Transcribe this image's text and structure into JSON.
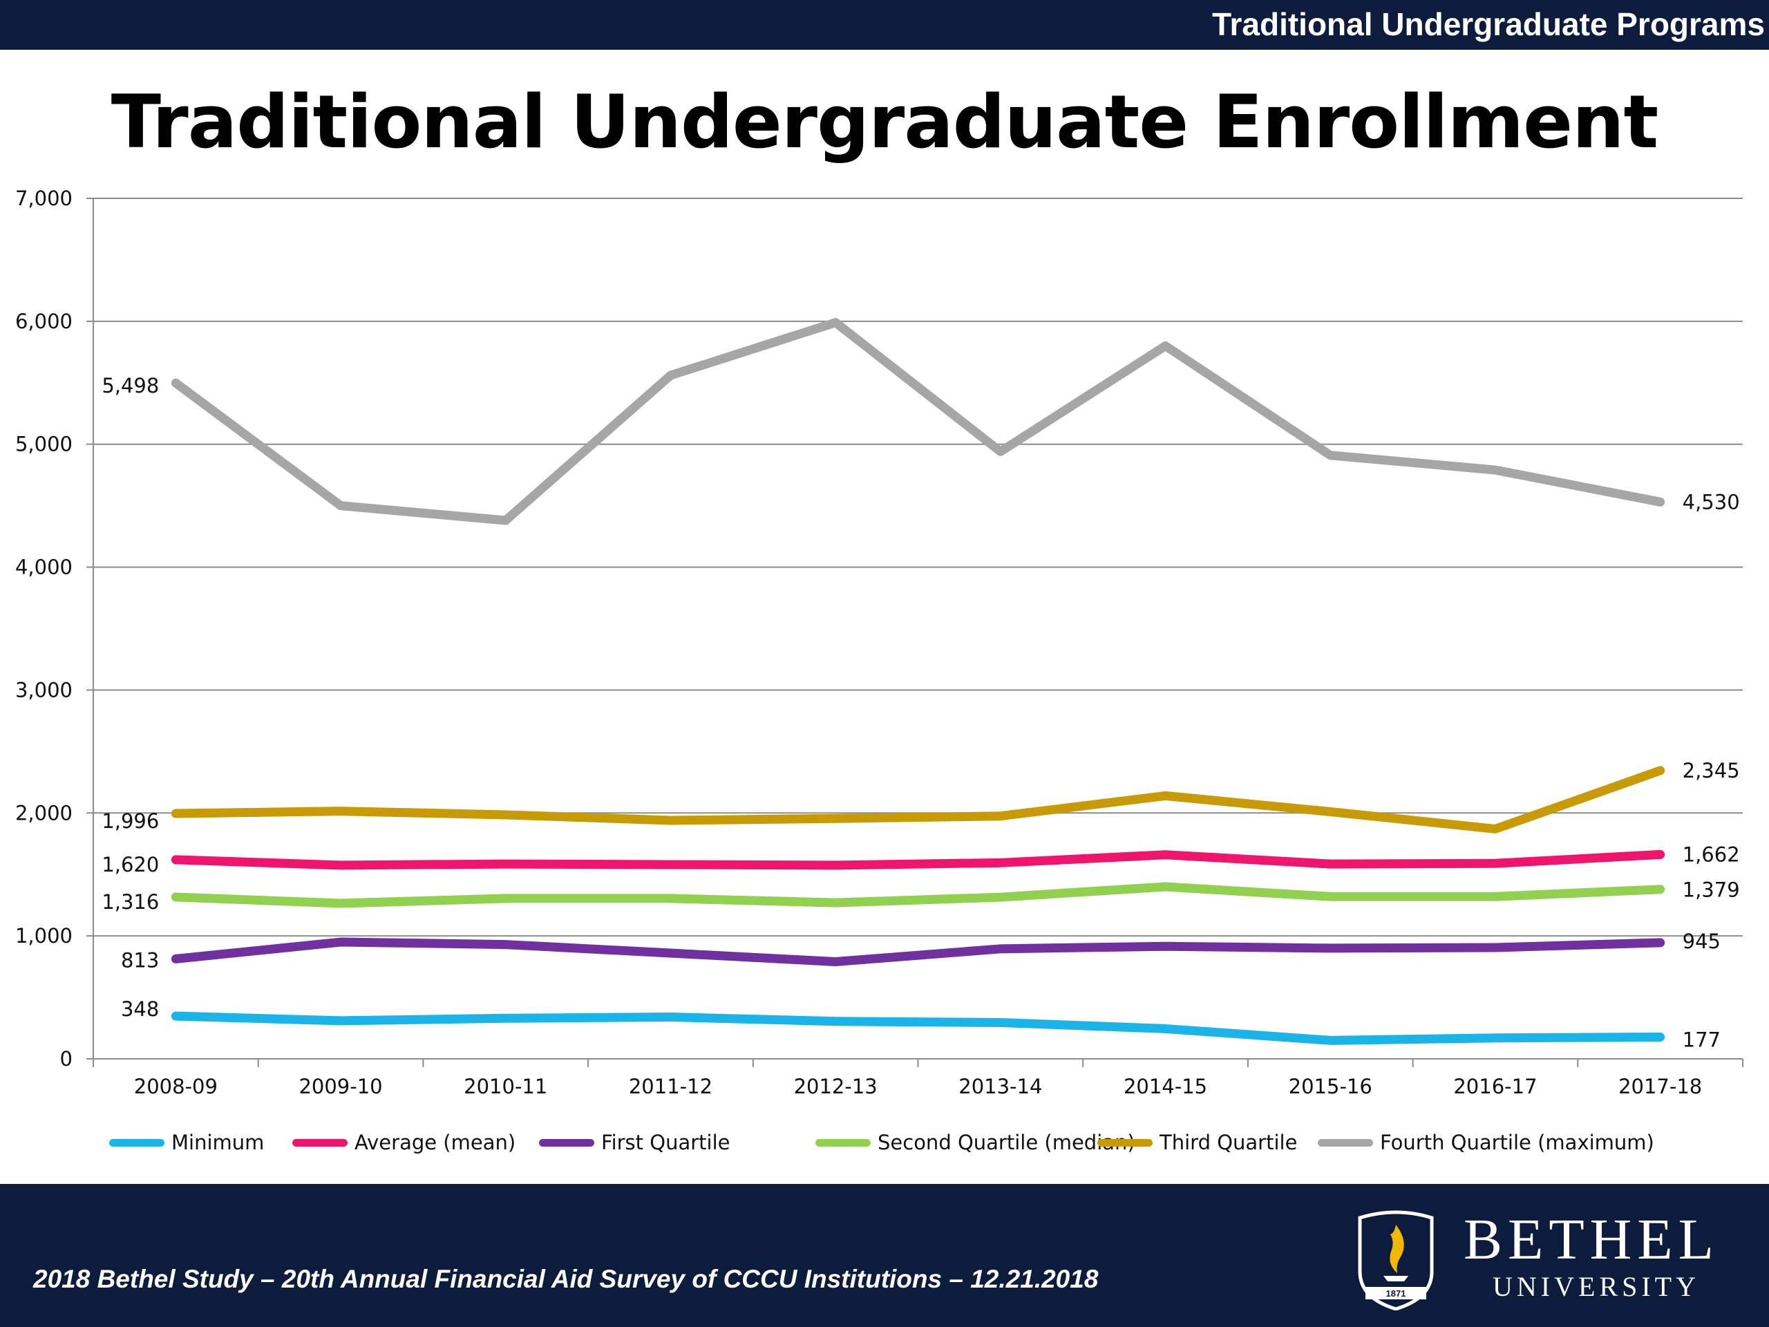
{
  "header": {
    "section_title": "Traditional Undergraduate Programs"
  },
  "title": "Traditional Undergraduate Enrollment",
  "footer": {
    "text": "2018 Bethel Study – 20th Annual Financial Aid Survey of CCCU Institutions – 12.21.2018",
    "logo_word1": "BETHEL",
    "logo_word2": "UNIVERSITY",
    "logo_year": "1871"
  },
  "chart_data": {
    "type": "line",
    "categories": [
      "2008-09",
      "2009-10",
      "2010-11",
      "2011-12",
      "2012-13",
      "2013-14",
      "2014-15",
      "2015-16",
      "2016-17",
      "2017-18"
    ],
    "ylim": [
      0,
      7000
    ],
    "yticks": [
      0,
      1000,
      2000,
      3000,
      4000,
      5000,
      6000,
      7000
    ],
    "ytick_labels": [
      "0",
      "1,000",
      "2,000",
      "3,000",
      "4,000",
      "5,000",
      "6,000",
      "7,000"
    ],
    "grid": true,
    "legend_position": "bottom",
    "series": [
      {
        "name": "Minimum",
        "color": "#1ab4e8",
        "values": [
          348,
          310,
          330,
          340,
          305,
          295,
          245,
          150,
          170,
          177
        ],
        "start_label": "348",
        "end_label": "177"
      },
      {
        "name": "Average (mean)",
        "color": "#f0156c",
        "values": [
          1620,
          1575,
          1585,
          1580,
          1575,
          1595,
          1660,
          1585,
          1590,
          1662
        ],
        "start_label": "1,620",
        "end_label": "1,662"
      },
      {
        "name": "First Quartile",
        "color": "#7030a0",
        "values": [
          813,
          950,
          930,
          860,
          790,
          895,
          915,
          900,
          905,
          945
        ],
        "start_label": "813",
        "end_label": "945"
      },
      {
        "name": "Second Quartile (median)",
        "color": "#92d050",
        "values": [
          1316,
          1265,
          1305,
          1305,
          1270,
          1315,
          1400,
          1320,
          1320,
          1379
        ],
        "start_label": "1,316",
        "end_label": "1,379"
      },
      {
        "name": "Third Quartile",
        "color": "#c89a06",
        "values": [
          1996,
          2015,
          1985,
          1940,
          1955,
          1975,
          2140,
          2010,
          1870,
          2345
        ],
        "start_label": "1,996",
        "end_label": "2,345"
      },
      {
        "name": "Fourth Quartile (maximum)",
        "color": "#a6a6a6",
        "values": [
          5498,
          4500,
          4380,
          5560,
          5990,
          4940,
          5800,
          4910,
          4790,
          4530
        ],
        "start_label": "5,498",
        "end_label": "4,530"
      }
    ]
  }
}
